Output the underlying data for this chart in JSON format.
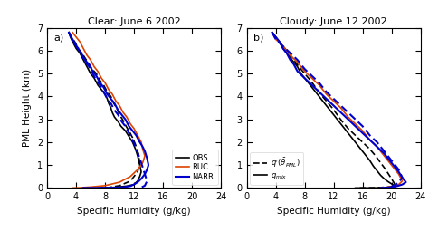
{
  "title_left": "Clear: June 6 2002",
  "title_right": "Cloudy: June 12 2002",
  "xlabel": "Specific Humidity (g/kg)",
  "ylabel": "PML Height (km)",
  "xlim": [
    0,
    24
  ],
  "ylim": [
    0,
    7
  ],
  "xticks": [
    0,
    4,
    8,
    12,
    16,
    20,
    24
  ],
  "yticks": [
    0,
    1,
    2,
    3,
    4,
    5,
    6,
    7
  ],
  "label_a": "a)",
  "label_b": "b)",
  "left_OBS_solid_q": [
    3.0,
    3.2,
    3.5,
    4.0,
    4.5,
    5.0,
    5.5,
    6.0,
    6.5,
    7.0,
    7.5,
    8.0,
    8.3,
    8.5,
    8.8,
    9.0,
    9.3,
    9.8,
    10.2,
    10.8,
    11.2,
    11.8,
    12.2,
    12.5,
    12.8,
    13.0,
    12.8,
    12.5,
    12.0,
    11.0,
    9.5,
    8.0,
    7.0
  ],
  "left_OBS_solid_h": [
    6.8,
    6.6,
    6.4,
    6.1,
    5.9,
    5.6,
    5.3,
    5.0,
    4.8,
    4.5,
    4.3,
    4.1,
    3.9,
    3.7,
    3.5,
    3.3,
    3.1,
    2.9,
    2.7,
    2.5,
    2.3,
    2.0,
    1.7,
    1.4,
    1.0,
    0.7,
    0.5,
    0.3,
    0.15,
    0.08,
    0.03,
    0.01,
    0.0
  ],
  "left_OBS_dash_q": [
    3.0,
    3.3,
    3.8,
    4.3,
    5.0,
    5.6,
    6.2,
    6.8,
    7.3,
    7.8,
    8.3,
    8.8,
    9.2,
    9.6,
    10.0,
    10.4,
    10.9,
    11.3,
    11.8,
    12.2,
    12.6,
    12.8,
    12.5,
    11.5,
    10.0,
    8.5,
    7.5
  ],
  "left_OBS_dash_h": [
    6.8,
    6.6,
    6.4,
    6.1,
    5.8,
    5.5,
    5.2,
    5.0,
    4.7,
    4.5,
    4.2,
    4.0,
    3.7,
    3.5,
    3.2,
    3.0,
    2.7,
    2.5,
    2.2,
    1.9,
    1.5,
    1.1,
    0.7,
    0.3,
    0.1,
    0.02,
    0.0
  ],
  "left_RUC_q": [
    3.5,
    4.0,
    4.5,
    5.0,
    5.5,
    6.0,
    6.5,
    7.0,
    7.5,
    8.0,
    8.5,
    9.0,
    9.5,
    10.0,
    10.5,
    11.0,
    11.5,
    12.0,
    12.5,
    13.0,
    13.2,
    13.5,
    13.2,
    12.5,
    11.5,
    10.0,
    8.0,
    6.0,
    4.5,
    3.5
  ],
  "left_RUC_h": [
    6.8,
    6.6,
    6.4,
    6.1,
    5.8,
    5.6,
    5.3,
    5.1,
    4.8,
    4.6,
    4.3,
    4.1,
    3.8,
    3.6,
    3.3,
    3.1,
    2.8,
    2.6,
    2.3,
    2.0,
    1.7,
    1.4,
    1.1,
    0.8,
    0.5,
    0.25,
    0.1,
    0.04,
    0.01,
    0.0
  ],
  "left_NARR_solid_q": [
    3.0,
    3.3,
    3.7,
    4.2,
    4.7,
    5.2,
    5.8,
    6.3,
    6.8,
    7.3,
    7.8,
    8.3,
    8.8,
    9.3,
    9.8,
    10.3,
    10.8,
    11.3,
    11.8,
    12.3,
    12.8,
    13.2,
    13.5,
    13.8,
    14.0,
    13.8,
    13.5,
    13.0,
    12.5,
    12.0,
    11.5,
    10.5,
    9.0,
    7.0,
    5.0
  ],
  "left_NARR_solid_h": [
    6.8,
    6.6,
    6.4,
    6.1,
    5.9,
    5.6,
    5.4,
    5.1,
    4.9,
    4.6,
    4.4,
    4.1,
    3.9,
    3.7,
    3.4,
    3.2,
    3.0,
    2.7,
    2.5,
    2.3,
    2.0,
    1.8,
    1.6,
    1.3,
    1.0,
    0.8,
    0.6,
    0.4,
    0.25,
    0.15,
    0.08,
    0.03,
    0.01,
    0.003,
    0.0
  ],
  "left_NARR_dash_q": [
    3.0,
    3.3,
    3.8,
    4.3,
    4.8,
    5.3,
    5.8,
    6.3,
    6.8,
    7.3,
    7.8,
    8.3,
    8.8,
    9.3,
    9.8,
    10.3,
    10.8,
    11.3,
    11.8,
    12.3,
    12.8,
    13.2,
    13.5,
    13.8,
    13.5,
    13.0,
    12.5
  ],
  "left_NARR_dash_h": [
    6.8,
    6.6,
    6.3,
    6.1,
    5.8,
    5.5,
    5.3,
    5.0,
    4.7,
    4.5,
    4.2,
    3.9,
    3.7,
    3.4,
    3.2,
    2.9,
    2.7,
    2.4,
    2.1,
    1.7,
    1.3,
    0.9,
    0.6,
    0.3,
    0.1,
    0.02,
    0.0
  ],
  "right_OBS_solid_q": [
    3.5,
    4.0,
    4.5,
    5.0,
    5.5,
    6.0,
    6.5,
    7.0,
    7.5,
    8.0,
    8.5,
    9.0,
    9.5,
    10.0,
    10.5,
    11.0,
    11.5,
    12.0,
    12.5,
    13.0,
    13.5,
    14.0,
    14.5,
    15.0,
    15.5,
    16.0,
    16.5,
    17.0,
    17.5,
    18.0,
    18.5,
    19.0,
    19.5,
    20.0,
    20.3,
    20.5,
    20.3,
    20.0,
    19.5,
    18.5,
    17.5,
    16.5,
    15.5,
    15.0
  ],
  "right_OBS_solid_h": [
    6.8,
    6.6,
    6.4,
    6.1,
    5.9,
    5.7,
    5.5,
    5.3,
    5.0,
    4.8,
    4.6,
    4.4,
    4.2,
    4.0,
    3.8,
    3.6,
    3.4,
    3.2,
    3.0,
    2.8,
    2.6,
    2.4,
    2.2,
    2.0,
    1.8,
    1.6,
    1.4,
    1.2,
    0.95,
    0.75,
    0.55,
    0.4,
    0.28,
    0.18,
    0.12,
    0.07,
    0.05,
    0.03,
    0.015,
    0.007,
    0.003,
    0.001,
    0.0003,
    0.0
  ],
  "right_OBS_dash_q": [
    3.5,
    4.2,
    5.0,
    5.8,
    6.5,
    7.2,
    8.0,
    8.8,
    9.5,
    10.2,
    11.0,
    11.8,
    12.5,
    13.2,
    14.0,
    15.0,
    16.0,
    17.0,
    17.8,
    18.5,
    19.2,
    19.8,
    20.3,
    20.5,
    20.3,
    19.5,
    18.5,
    17.5,
    16.5,
    15.5
  ],
  "right_OBS_dash_h": [
    6.8,
    6.5,
    6.2,
    5.9,
    5.6,
    5.3,
    5.0,
    4.7,
    4.4,
    4.1,
    3.8,
    3.5,
    3.2,
    2.9,
    2.6,
    2.3,
    2.0,
    1.7,
    1.4,
    1.1,
    0.8,
    0.5,
    0.25,
    0.12,
    0.07,
    0.04,
    0.02,
    0.01,
    0.003,
    0.0
  ],
  "right_RUC_q": [
    3.5,
    4.0,
    5.0,
    6.0,
    7.0,
    8.0,
    9.0,
    10.0,
    11.0,
    12.0,
    13.0,
    14.0,
    15.0,
    16.0,
    17.0,
    18.0,
    19.0,
    20.0,
    21.0,
    21.5,
    21.0,
    20.5,
    20.0,
    19.5,
    19.0,
    18.5
  ],
  "right_RUC_h": [
    6.8,
    6.5,
    6.2,
    5.8,
    5.5,
    5.1,
    4.8,
    4.5,
    4.1,
    3.8,
    3.5,
    3.1,
    2.8,
    2.5,
    2.1,
    1.8,
    1.4,
    1.0,
    0.6,
    0.3,
    0.15,
    0.1,
    0.06,
    0.03,
    0.01,
    0.0
  ],
  "right_NARR_solid_q": [
    3.5,
    4.0,
    4.5,
    5.0,
    5.5,
    6.0,
    6.5,
    7.0,
    8.0,
    9.0,
    10.0,
    11.0,
    12.0,
    13.0,
    14.0,
    15.0,
    16.0,
    17.0,
    18.0,
    19.0,
    20.0,
    21.0,
    21.5,
    22.0,
    21.5,
    21.0,
    20.5,
    20.0,
    19.5,
    19.0,
    18.5
  ],
  "right_NARR_solid_h": [
    6.8,
    6.6,
    6.4,
    6.1,
    5.9,
    5.6,
    5.4,
    5.1,
    4.8,
    4.5,
    4.2,
    3.9,
    3.6,
    3.3,
    3.0,
    2.7,
    2.4,
    2.1,
    1.8,
    1.5,
    1.1,
    0.7,
    0.45,
    0.25,
    0.15,
    0.1,
    0.06,
    0.03,
    0.015,
    0.005,
    0.0
  ],
  "right_NARR_dash_q": [
    3.5,
    4.0,
    5.0,
    6.0,
    7.0,
    8.0,
    9.0,
    10.0,
    11.0,
    12.0,
    13.0,
    14.0,
    15.0,
    16.0,
    17.0,
    18.0,
    19.0,
    20.0,
    21.0,
    21.5,
    21.0,
    20.5,
    20.0,
    19.5,
    19.0
  ],
  "right_NARR_dash_h": [
    6.8,
    6.5,
    6.2,
    5.9,
    5.6,
    5.2,
    4.9,
    4.6,
    4.2,
    3.9,
    3.6,
    3.3,
    3.0,
    2.7,
    2.3,
    2.0,
    1.6,
    1.2,
    0.8,
    0.45,
    0.25,
    0.12,
    0.06,
    0.02,
    0.0
  ],
  "color_OBS": "#000000",
  "color_RUC": "#dd4400",
  "color_NARR": "#0000cc",
  "lw": 1.2
}
